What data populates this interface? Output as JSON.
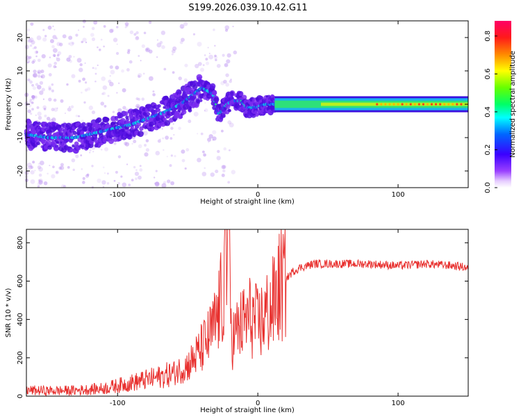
{
  "title": "S199.2026.039.10.42.G11",
  "chart_data": [
    {
      "type": "heatmap",
      "xlabel": "Height of straight line (km)",
      "ylabel": "Frequency (Hz)",
      "xlim": [
        -165,
        150
      ],
      "ylim": [
        -25,
        25
      ],
      "xticks": [
        -100,
        0,
        100
      ],
      "yticks": [
        -20,
        -10,
        0,
        10,
        20
      ],
      "colorbar": {
        "label": "Normalized spectral amplitude",
        "range": [
          0,
          0.88
        ],
        "ticks": [
          0.0,
          0.2,
          0.4,
          0.6,
          0.8
        ]
      },
      "ridge": {
        "description_points_x_km": [
          -165,
          -150,
          -130,
          -110,
          -90,
          -70,
          -55,
          -40,
          -32,
          -28,
          -22,
          -18,
          -12,
          -8,
          -2,
          5,
          10,
          20,
          60,
          80,
          100,
          150
        ],
        "description_points_freq_hz": [
          -9,
          -10,
          -10,
          -8,
          -6,
          -3,
          0,
          5,
          3,
          -3,
          0,
          1,
          1,
          -1,
          -1,
          0,
          0,
          0,
          0,
          0,
          0,
          0
        ]
      }
    },
    {
      "type": "line",
      "xlabel": "Height of straight line (km)",
      "ylabel": "SNR (10 * v/v)",
      "xlim": [
        -165,
        150
      ],
      "ylim": [
        0,
        870
      ],
      "xticks": [
        -100,
        0,
        100
      ],
      "yticks": [
        0,
        200,
        400,
        600,
        800
      ],
      "series": [
        {
          "name": "SNR",
          "color": "#e8302e",
          "x": [
            -165,
            -150,
            -130,
            -110,
            -100,
            -90,
            -80,
            -70,
            -60,
            -50,
            -45,
            -40,
            -35,
            -30,
            -26,
            -22,
            -18,
            -14,
            -10,
            -5,
            0,
            5,
            10,
            15,
            20,
            25,
            30,
            40,
            60,
            80,
            100,
            120,
            140,
            150
          ],
          "y": [
            30,
            28,
            30,
            40,
            55,
            70,
            85,
            100,
            120,
            160,
            200,
            250,
            300,
            380,
            500,
            650,
            300,
            350,
            380,
            420,
            370,
            420,
            460,
            560,
            610,
            650,
            670,
            690,
            690,
            690,
            680,
            690,
            680,
            670
          ]
        }
      ]
    }
  ]
}
